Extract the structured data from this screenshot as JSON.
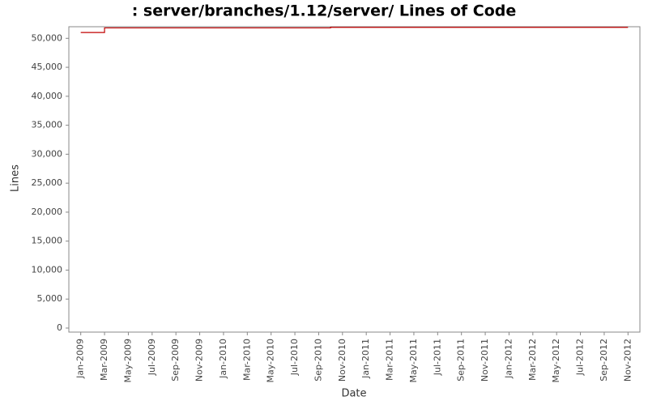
{
  "chart_data": {
    "type": "line",
    "title": ": server/branches/1.12/server/ Lines of Code",
    "x_label": "Date",
    "y_label": "Lines",
    "x": [
      "2009-01",
      "2009-03",
      "2010-10",
      "2012-11"
    ],
    "series": [
      {
        "name": "Lines",
        "color": "#c00000",
        "values": [
          51000,
          51800,
          51900,
          51900
        ]
      }
    ],
    "step": true,
    "xlim": [
      "2008-12",
      "2012-12"
    ],
    "xticks": [
      {
        "value": "2009-01",
        "label": "Jan-2009"
      },
      {
        "value": "2009-03",
        "label": "Mar-2009"
      },
      {
        "value": "2009-05",
        "label": "May-2009"
      },
      {
        "value": "2009-07",
        "label": "Jul-2009"
      },
      {
        "value": "2009-09",
        "label": "Sep-2009"
      },
      {
        "value": "2009-11",
        "label": "Nov-2009"
      },
      {
        "value": "2010-01",
        "label": "Jan-2010"
      },
      {
        "value": "2010-03",
        "label": "Mar-2010"
      },
      {
        "value": "2010-05",
        "label": "May-2010"
      },
      {
        "value": "2010-07",
        "label": "Jul-2010"
      },
      {
        "value": "2010-09",
        "label": "Sep-2010"
      },
      {
        "value": "2010-11",
        "label": "Nov-2010"
      },
      {
        "value": "2011-01",
        "label": "Jan-2011"
      },
      {
        "value": "2011-03",
        "label": "Mar-2011"
      },
      {
        "value": "2011-05",
        "label": "May-2011"
      },
      {
        "value": "2011-07",
        "label": "Jul-2011"
      },
      {
        "value": "2011-09",
        "label": "Sep-2011"
      },
      {
        "value": "2011-11",
        "label": "Nov-2011"
      },
      {
        "value": "2012-01",
        "label": "Jan-2012"
      },
      {
        "value": "2012-03",
        "label": "Mar-2012"
      },
      {
        "value": "2012-05",
        "label": "May-2012"
      },
      {
        "value": "2012-07",
        "label": "Jul-2012"
      },
      {
        "value": "2012-09",
        "label": "Sep-2012"
      },
      {
        "value": "2012-11",
        "label": "Nov-2012"
      }
    ],
    "ylim": [
      -700,
      52000
    ],
    "yticks": [
      0,
      {
        "value": 5000,
        "label": "5,000"
      },
      {
        "value": 10000,
        "label": "10,000"
      },
      {
        "value": 15000,
        "label": "15,000"
      },
      {
        "value": 20000,
        "label": "20,000"
      },
      {
        "value": 25000,
        "label": "25,000"
      },
      {
        "value": 30000,
        "label": "30,000"
      },
      {
        "value": 35000,
        "label": "35,000"
      },
      {
        "value": 40000,
        "label": "40,000"
      },
      {
        "value": 45000,
        "label": "45,000"
      },
      {
        "value": 50000,
        "label": "50,000"
      }
    ],
    "grid": false
  }
}
